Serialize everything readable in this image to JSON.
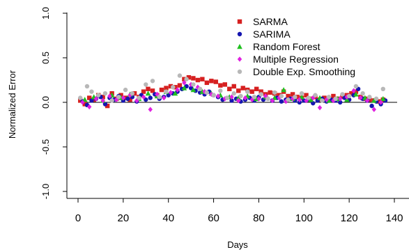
{
  "chart_data": {
    "type": "scatter",
    "xlabel": "Days",
    "ylabel": "Normalized Error",
    "xlim": [
      0,
      140
    ],
    "ylim": [
      -1.0,
      1.0
    ],
    "x_ticks": [
      0,
      20,
      40,
      60,
      80,
      100,
      120,
      140
    ],
    "x_tick_labels": [
      "0",
      "20",
      "40",
      "60",
      "80",
      "100",
      "120",
      "140"
    ],
    "y_ticks": [
      -1.0,
      -0.5,
      0.0,
      0.5,
      1.0
    ],
    "y_tick_labels": [
      "-1.0",
      "-0.5",
      "0.0",
      "0.5",
      "1.0"
    ],
    "reference_line_y": 0,
    "legend_position": "top-right",
    "series": [
      {
        "name": "SARMA",
        "color": "#d62020",
        "marker": "square",
        "x": [
          1,
          3,
          5,
          7,
          9,
          11,
          13,
          15,
          17,
          19,
          21,
          23,
          25,
          27,
          29,
          31,
          33,
          35,
          37,
          39,
          41,
          43,
          45,
          47,
          49,
          51,
          53,
          55,
          57,
          59,
          61,
          63,
          65,
          67,
          69,
          71,
          73,
          75,
          77,
          79,
          81,
          83,
          85,
          87,
          89,
          91,
          93,
          95,
          97,
          99,
          101,
          103,
          105,
          107,
          109,
          111,
          113,
          115,
          117,
          119,
          121,
          123,
          125,
          127,
          129,
          131,
          133,
          135
        ],
        "y": [
          0.02,
          -0.02,
          0.05,
          0.03,
          0.08,
          0.06,
          -0.04,
          0.1,
          0.04,
          0.08,
          0.05,
          0.03,
          0.1,
          0.06,
          0.12,
          0.15,
          0.13,
          0.08,
          0.14,
          0.16,
          0.18,
          0.17,
          0.19,
          0.26,
          0.28,
          0.27,
          0.25,
          0.26,
          0.22,
          0.24,
          0.23,
          0.19,
          0.2,
          0.15,
          0.18,
          0.13,
          0.16,
          0.14,
          0.12,
          0.15,
          0.12,
          0.09,
          0.11,
          0.1,
          0.08,
          0.12,
          0.07,
          0.09,
          0.06,
          0.05,
          0.08,
          0.04,
          0.06,
          0.03,
          0.05,
          0.02,
          0.07,
          0.04,
          0.06,
          0.08,
          0.1,
          0.12,
          0.06,
          0.04,
          0.03,
          0.02,
          0.01,
          0.03
        ]
      },
      {
        "name": "SARIMA",
        "color": "#1515b0",
        "marker": "circle",
        "x": [
          2,
          4,
          6,
          8,
          10,
          12,
          14,
          16,
          18,
          20,
          22,
          24,
          26,
          28,
          30,
          32,
          34,
          36,
          38,
          40,
          42,
          44,
          46,
          48,
          50,
          52,
          54,
          56,
          58,
          60,
          62,
          64,
          66,
          68,
          70,
          72,
          74,
          76,
          78,
          80,
          82,
          84,
          86,
          88,
          90,
          92,
          94,
          96,
          98,
          100,
          102,
          104,
          106,
          108,
          110,
          112,
          114,
          116,
          118,
          120,
          122,
          124,
          126,
          128,
          130,
          132,
          134,
          136
        ],
        "y": [
          0.01,
          -0.03,
          0.02,
          0.04,
          0.06,
          -0.02,
          0.05,
          0.03,
          0.07,
          0.02,
          0.04,
          0.06,
          0.01,
          0.08,
          0.03,
          0.05,
          0.09,
          0.04,
          0.06,
          0.08,
          0.1,
          0.12,
          0.15,
          0.18,
          0.16,
          0.13,
          0.11,
          0.09,
          0.12,
          0.08,
          0.06,
          0.03,
          0.05,
          0.02,
          0.04,
          0.01,
          0.03,
          0.05,
          0.02,
          0.06,
          0.03,
          0.04,
          0.02,
          0.05,
          0.01,
          0.03,
          0.04,
          0.02,
          0.0,
          0.02,
          0.03,
          -0.01,
          0.02,
          0.04,
          0.01,
          0.03,
          0.02,
          0.0,
          0.05,
          0.03,
          0.08,
          0.15,
          0.04,
          0.02,
          -0.04,
          0.01,
          -0.02,
          0.02
        ]
      },
      {
        "name": "Random Forest",
        "color": "#20c020",
        "marker": "triangle",
        "x": [
          3,
          7,
          11,
          15,
          19,
          23,
          27,
          31,
          35,
          39,
          43,
          47,
          51,
          55,
          59,
          63,
          67,
          71,
          75,
          79,
          83,
          87,
          91,
          95,
          99,
          103,
          107,
          111,
          115,
          119,
          123,
          127,
          131,
          135
        ],
        "y": [
          0.03,
          0.06,
          0.02,
          0.08,
          0.05,
          0.09,
          0.04,
          0.1,
          0.07,
          0.12,
          0.1,
          0.16,
          0.14,
          0.12,
          0.1,
          0.08,
          0.06,
          0.05,
          0.07,
          0.04,
          0.06,
          0.05,
          0.14,
          0.04,
          0.06,
          0.03,
          0.05,
          0.02,
          0.04,
          0.03,
          0.09,
          0.05,
          0.02,
          0.04
        ]
      },
      {
        "name": "Multiple Regression",
        "color": "#e020e0",
        "marker": "diamond",
        "x": [
          2,
          5,
          8,
          11,
          14,
          17,
          20,
          23,
          26,
          29,
          32,
          35,
          38,
          41,
          44,
          47,
          50,
          53,
          56,
          59,
          62,
          65,
          68,
          71,
          74,
          77,
          80,
          83,
          86,
          89,
          92,
          95,
          98,
          101,
          104,
          107,
          110,
          113,
          116,
          119,
          122,
          125,
          128,
          131,
          134
        ],
        "y": [
          0.0,
          -0.05,
          0.04,
          0.02,
          0.07,
          0.03,
          0.05,
          0.08,
          0.02,
          0.06,
          -0.08,
          0.09,
          0.05,
          0.11,
          0.14,
          0.22,
          0.2,
          0.17,
          0.12,
          0.09,
          0.07,
          0.04,
          0.06,
          0.02,
          0.05,
          0.03,
          0.04,
          0.07,
          0.02,
          0.05,
          0.01,
          0.04,
          0.03,
          0.02,
          0.05,
          -0.06,
          0.03,
          0.02,
          0.04,
          0.06,
          0.13,
          0.05,
          0.02,
          -0.08,
          0.0
        ]
      },
      {
        "name": "Double Exp. Smoothing",
        "color": "#b8b8b8",
        "marker": "circle",
        "x": [
          1,
          4,
          6,
          9,
          12,
          15,
          18,
          21,
          24,
          27,
          30,
          33,
          36,
          39,
          42,
          45,
          48,
          51,
          54,
          57,
          60,
          63,
          66,
          69,
          72,
          75,
          78,
          81,
          84,
          87,
          90,
          93,
          96,
          99,
          102,
          105,
          108,
          111,
          114,
          117,
          120,
          123,
          126,
          129,
          132,
          135
        ],
        "y": [
          0.05,
          0.18,
          0.12,
          0.08,
          0.1,
          0.02,
          0.06,
          0.14,
          0.1,
          0.05,
          0.2,
          0.24,
          0.06,
          0.12,
          0.17,
          0.3,
          0.26,
          0.2,
          0.15,
          0.11,
          0.08,
          0.13,
          0.05,
          0.1,
          0.07,
          0.12,
          0.06,
          0.09,
          0.04,
          0.11,
          0.07,
          0.03,
          0.06,
          0.1,
          0.05,
          0.08,
          0.02,
          0.06,
          0.04,
          0.09,
          0.07,
          0.18,
          0.1,
          0.06,
          0.04,
          0.15
        ]
      }
    ]
  }
}
